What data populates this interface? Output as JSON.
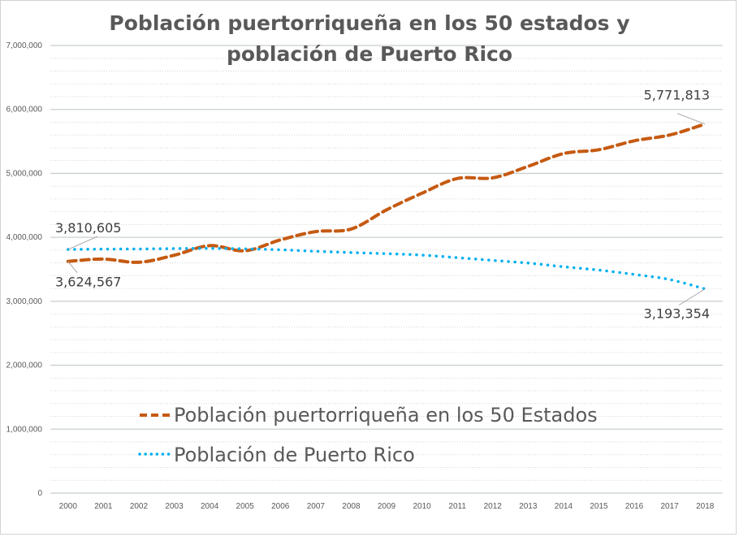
{
  "chart_data": {
    "type": "line",
    "title": "Población puertorriqueña en los 50 estados y población de Puerto Rico",
    "title_lines": [
      "Población puertorriqueña en los 50 estados y",
      "población de Puerto Rico"
    ],
    "xlabel": "",
    "ylabel": "",
    "ylim": [
      0,
      7000000
    ],
    "y_major_step": 1000000,
    "y_minor_step": 200000,
    "grid": true,
    "legend_position": "inside-lower-center",
    "yticks": [
      0,
      1000000,
      2000000,
      3000000,
      4000000,
      5000000,
      6000000,
      7000000
    ],
    "ytick_labels": [
      "0",
      "1,000,000",
      "2,000,000",
      "3,000,000",
      "4,000,000",
      "5,000,000",
      "6,000,000",
      "7,000,000"
    ],
    "categories": [
      "2000",
      "2001",
      "2002",
      "2003",
      "2004",
      "2005",
      "2006",
      "2007",
      "2008",
      "2009",
      "2010",
      "2011",
      "2012",
      "2013",
      "2014",
      "2015",
      "2016",
      "2017",
      "2018"
    ],
    "series": [
      {
        "name": "Población puertorriqueña en los 50 Estados",
        "color": "#C55A11",
        "style": "dashed",
        "values": [
          3624567,
          3660000,
          3610000,
          3720000,
          3870000,
          3790000,
          3960000,
          4090000,
          4130000,
          4430000,
          4690000,
          4920000,
          4930000,
          5110000,
          5310000,
          5370000,
          5510000,
          5600000,
          5771813
        ],
        "data_labels": [
          {
            "index": 0,
            "text": "3,624,567",
            "position": "below"
          },
          {
            "index": 18,
            "text": "5,771,813",
            "position": "above"
          }
        ]
      },
      {
        "name": "Población de Puerto Rico",
        "color": "#00B0F0",
        "style": "dotted",
        "values": [
          3810605,
          3816000,
          3818000,
          3824000,
          3827000,
          3820000,
          3806000,
          3782000,
          3762000,
          3745000,
          3722000,
          3682000,
          3640000,
          3598000,
          3540000,
          3488000,
          3420000,
          3340000,
          3193354
        ],
        "data_labels": [
          {
            "index": 0,
            "text": "3,810,605",
            "position": "above"
          },
          {
            "index": 18,
            "text": "3,193,354",
            "position": "below"
          }
        ]
      }
    ]
  }
}
